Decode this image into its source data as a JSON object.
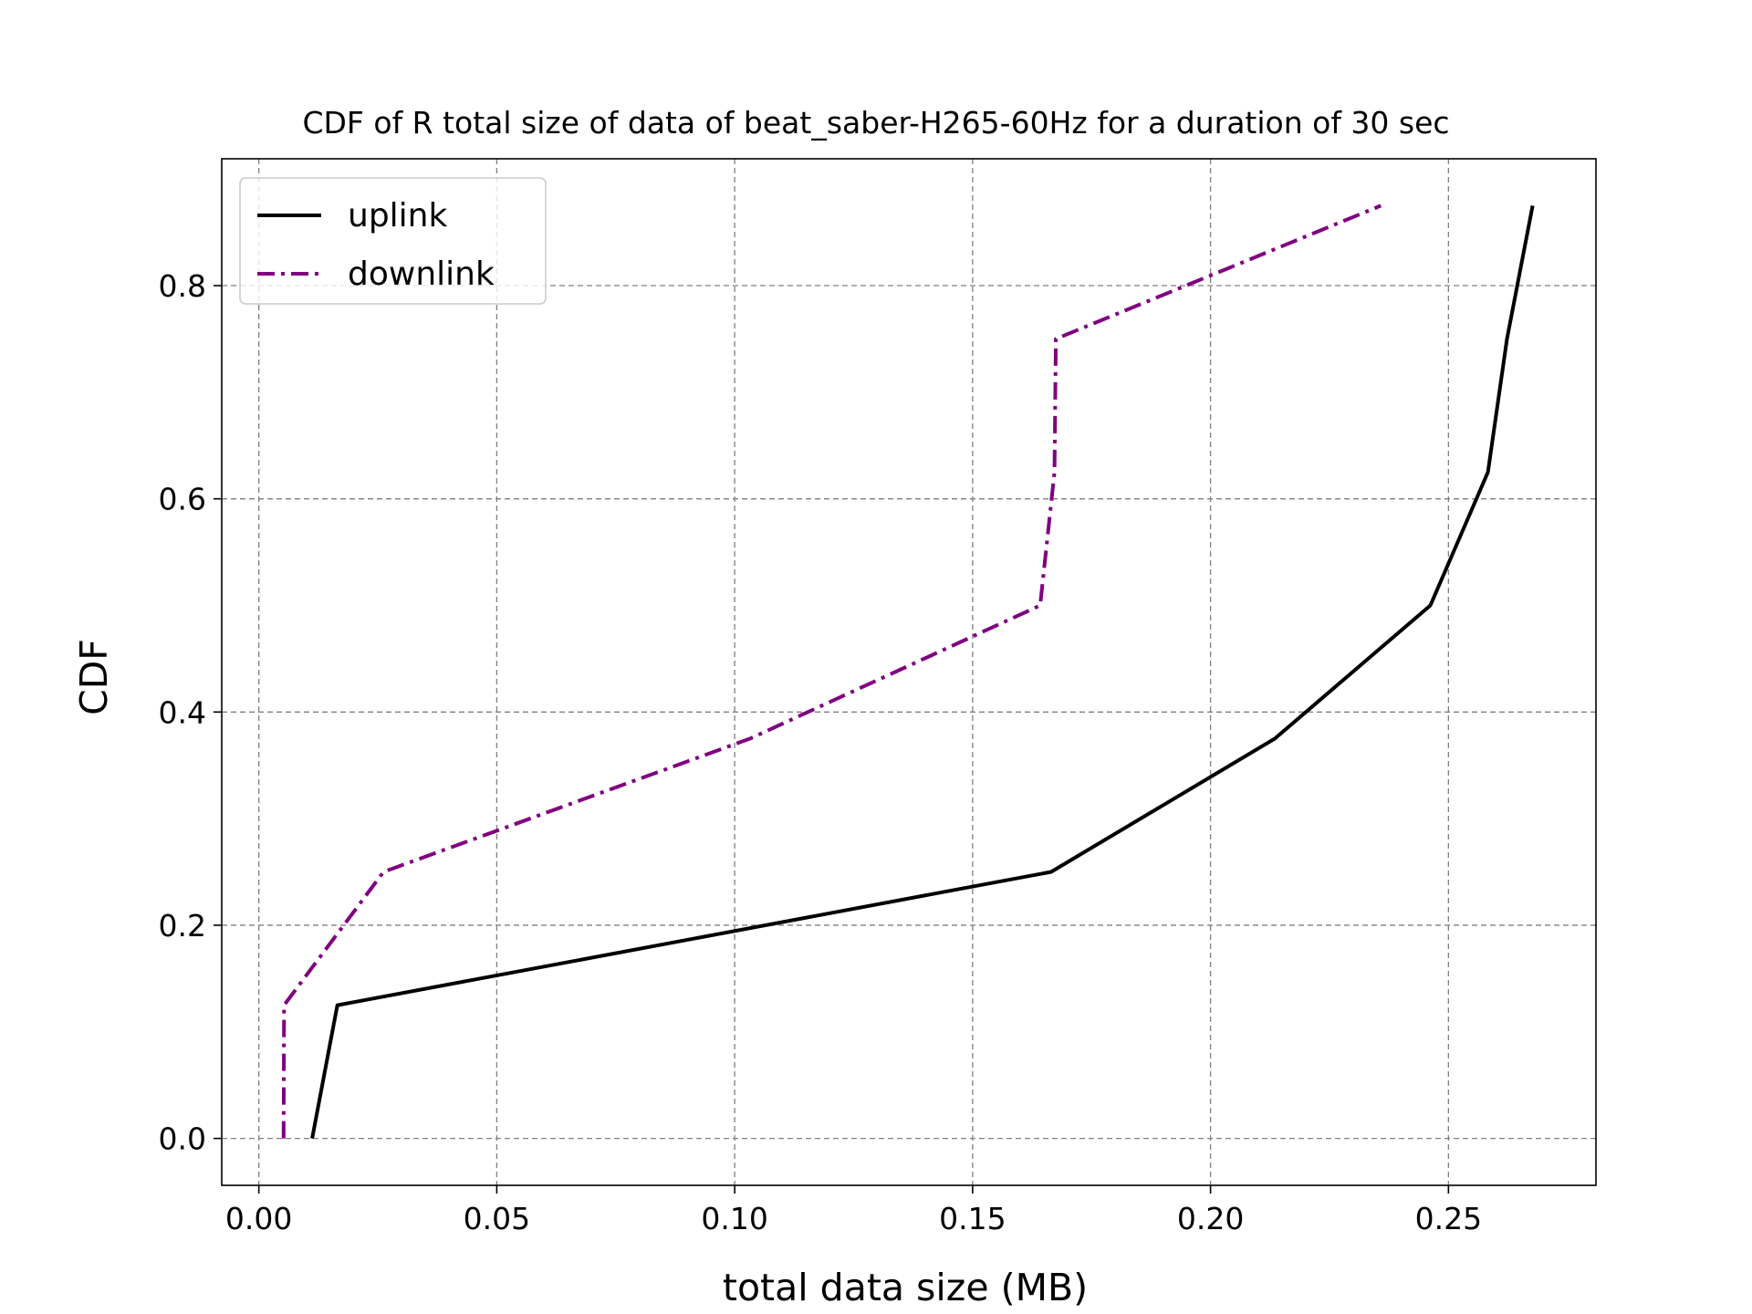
{
  "chart_data": {
    "type": "line",
    "title": "CDF of R total size of data of beat_saber-H265-60Hz for a duration of 30 sec",
    "xlabel": "total data size (MB)",
    "ylabel": "CDF",
    "xlim": [
      -0.0078,
      0.281
    ],
    "ylim": [
      -0.044,
      0.919
    ],
    "xticks": [
      0.0,
      0.05,
      0.1,
      0.15,
      0.2,
      0.25
    ],
    "xtick_labels": [
      "0.00",
      "0.05",
      "0.10",
      "0.15",
      "0.20",
      "0.25"
    ],
    "yticks": [
      0.0,
      0.2,
      0.4,
      0.6,
      0.8
    ],
    "ytick_labels": [
      "0.0",
      "0.2",
      "0.4",
      "0.6",
      "0.8"
    ],
    "grid": true,
    "legend_position": "top-left",
    "series": [
      {
        "name": "uplink",
        "color": "#000000",
        "line_style": "solid",
        "x": [
          0.0112,
          0.0165,
          0.1665,
          0.2135,
          0.2462,
          0.2583,
          0.2623,
          0.2677
        ],
        "y": [
          0.0,
          0.125,
          0.25,
          0.375,
          0.5,
          0.625,
          0.75,
          0.875
        ]
      },
      {
        "name": "downlink",
        "color": "#800080",
        "line_style": "dashdot",
        "x": [
          0.0052,
          0.0053,
          0.0262,
          0.1032,
          0.1642,
          0.1672,
          0.1675,
          0.2358
        ],
        "y": [
          0.0,
          0.125,
          0.25,
          0.375,
          0.5,
          0.625,
          0.75,
          0.875
        ]
      }
    ]
  }
}
